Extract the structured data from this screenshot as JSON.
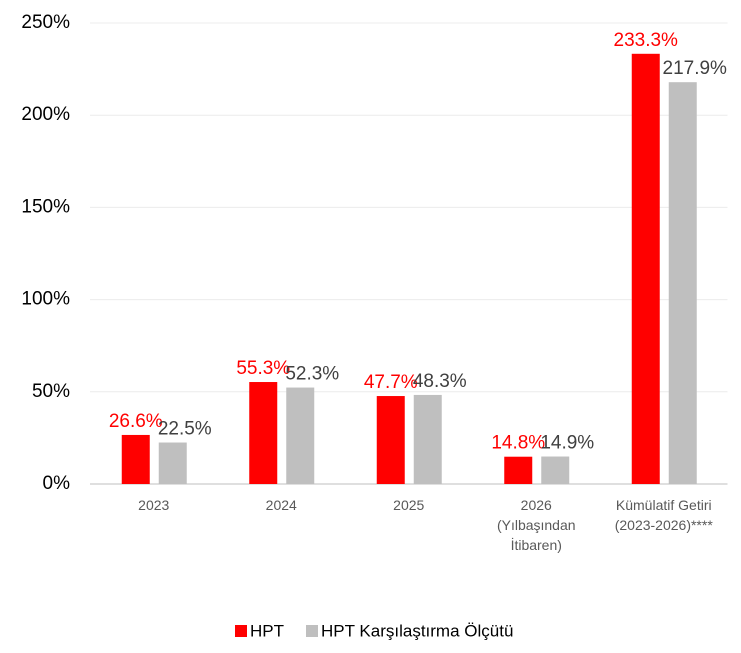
{
  "chart_data": {
    "type": "bar",
    "categories": [
      "2023",
      "2024",
      "2025",
      "2026\n(Yılbaşından\nİtibaren)",
      "Kümülatif Getiri\n(2023-2026)****"
    ],
    "series": [
      {
        "name": "HPT",
        "color": "#ff0000",
        "values": [
          26.6,
          55.3,
          47.7,
          14.8,
          233.3
        ],
        "value_labels": [
          "26.6%",
          "55.3%",
          "47.7%",
          "14.8%",
          "233.3%"
        ]
      },
      {
        "name": "HPT Karşılaştırma Ölçütü",
        "color": "#bfbfbf",
        "values": [
          22.5,
          52.3,
          48.3,
          14.9,
          217.9
        ],
        "value_labels": [
          "22.5%",
          "52.3%",
          "48.3%",
          "14.9%",
          "217.9%"
        ]
      }
    ],
    "ylim": [
      0,
      250
    ],
    "yticks": [
      {
        "value": 0,
        "label": "0%"
      },
      {
        "value": 50,
        "label": "50%"
      },
      {
        "value": 100,
        "label": "100%"
      },
      {
        "value": 150,
        "label": "150%"
      },
      {
        "value": 200,
        "label": "200%"
      },
      {
        "value": 250,
        "label": "250%"
      }
    ],
    "grid": true,
    "legend": "bottom"
  }
}
